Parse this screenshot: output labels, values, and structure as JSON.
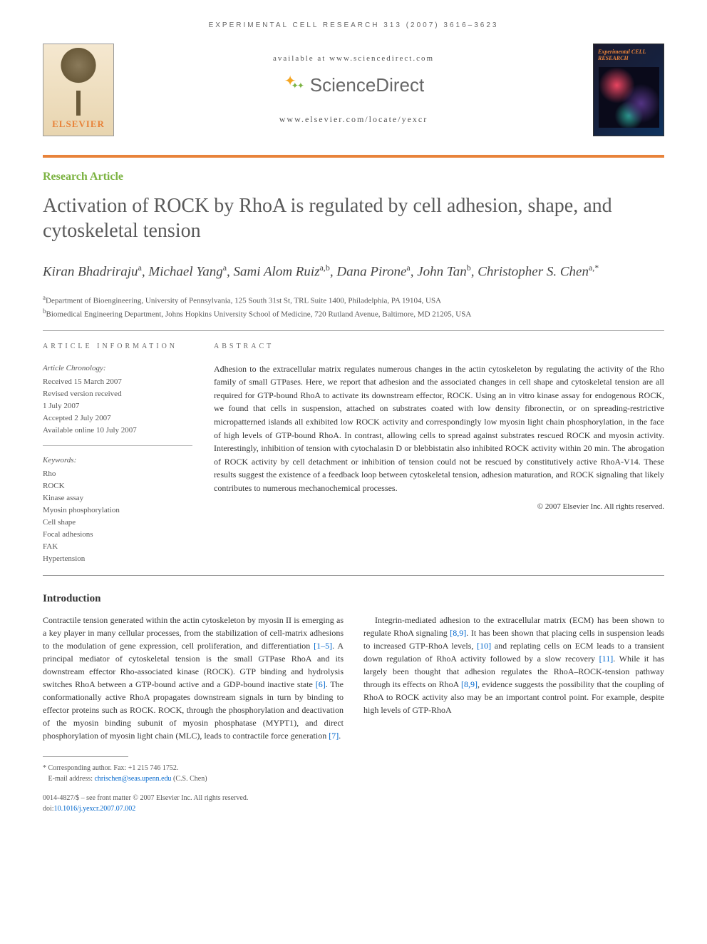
{
  "running_head": "EXPERIMENTAL CELL RESEARCH 313 (2007) 3616–3623",
  "header": {
    "elsevier": "ELSEVIER",
    "available_at": "available at www.sciencedirect.com",
    "sciencedirect": "ScienceDirect",
    "journal_url": "www.elsevier.com/locate/yexcr",
    "journal_cover_title": "Experimental CELL RESEARCH",
    "accent_color": "#e8833a"
  },
  "article_type": "Research Article",
  "title": "Activation of ROCK by RhoA is regulated by cell adhesion, shape, and cytoskeletal tension",
  "authors_line": "Kiran Bhadriraju",
  "authors": [
    {
      "name": "Kiran Bhadriraju",
      "aff": "a"
    },
    {
      "name": "Michael Yang",
      "aff": "a"
    },
    {
      "name": "Sami Alom Ruiz",
      "aff": "a,b"
    },
    {
      "name": "Dana Pirone",
      "aff": "a"
    },
    {
      "name": "John Tan",
      "aff": "b"
    },
    {
      "name": "Christopher S. Chen",
      "aff": "a,*"
    }
  ],
  "affiliations": {
    "a": "Department of Bioengineering, University of Pennsylvania, 125 South 31st St, TRL Suite 1400, Philadelphia, PA 19104, USA",
    "b": "Biomedical Engineering Department, Johns Hopkins University School of Medicine, 720 Rutland Avenue, Baltimore, MD 21205, USA"
  },
  "article_info": {
    "head": "ARTICLE INFORMATION",
    "chronology_label": "Article Chronology:",
    "received": "Received 15 March 2007",
    "revised1": "Revised version received",
    "revised2": "1 July 2007",
    "accepted": "Accepted 2 July 2007",
    "online": "Available online 10 July 2007",
    "keywords_label": "Keywords:",
    "keywords": [
      "Rho",
      "ROCK",
      "Kinase assay",
      "Myosin phosphorylation",
      "Cell shape",
      "Focal adhesions",
      "FAK",
      "Hypertension"
    ]
  },
  "abstract": {
    "head": "ABSTRACT",
    "text": "Adhesion to the extracellular matrix regulates numerous changes in the actin cytoskeleton by regulating the activity of the Rho family of small GTPases. Here, we report that adhesion and the associated changes in cell shape and cytoskeletal tension are all required for GTP-bound RhoA to activate its downstream effector, ROCK. Using an in vitro kinase assay for endogenous ROCK, we found that cells in suspension, attached on substrates coated with low density fibronectin, or on spreading-restrictive micropatterned islands all exhibited low ROCK activity and correspondingly low myosin light chain phosphorylation, in the face of high levels of GTP-bound RhoA. In contrast, allowing cells to spread against substrates rescued ROCK and myosin activity. Interestingly, inhibition of tension with cytochalasin D or blebbistatin also inhibited ROCK activity within 20 min. The abrogation of ROCK activity by cell detachment or inhibition of tension could not be rescued by constitutively active RhoA-V14. These results suggest the existence of a feedback loop between cytoskeletal tension, adhesion maturation, and ROCK signaling that likely contributes to numerous mechanochemical processes.",
    "copyright": "© 2007 Elsevier Inc. All rights reserved."
  },
  "intro": {
    "head": "Introduction",
    "p1a": "Contractile tension generated within the actin cytoskeleton by myosin II is emerging as a key player in many cellular processes, from the stabilization of cell-matrix adhesions to the modulation of gene expression, cell proliferation, and differentiation ",
    "ref1": "[1–5]",
    "p1b": ". A principal mediator of cytoskeletal tension is the small GTPase RhoA and its downstream effector Rho-associated kinase (ROCK). GTP binding and hydrolysis switches RhoA between a GTP-bound active and a GDP-bound inactive state ",
    "ref6": "[6]",
    "p1c": ". The conformationally active RhoA propagates downstream signals in turn by binding to effector proteins such as ROCK. ROCK, through the phosphorylation and deactivation of the myosin binding subunit of myosin phosphatase (MYPT1), and direct phosphorylation of myosin light chain (MLC), leads to contractile force generation ",
    "ref7": "[7]",
    "p1d": ".",
    "p2a": "Integrin-mediated adhesion to the extracellular matrix (ECM) has been shown to regulate RhoA signaling ",
    "ref89a": "[8,9]",
    "p2b": ". It has been shown that placing cells in suspension leads to increased GTP-RhoA levels, ",
    "ref10": "[10]",
    "p2c": " and replating cells on ECM leads to a transient down regulation of RhoA activity followed by a slow recovery ",
    "ref11": "[11]",
    "p2d": ". While it has largely been thought that adhesion regulates the RhoA–ROCK-tension pathway through its effects on RhoA ",
    "ref89b": "[8,9]",
    "p2e": ", evidence suggests the possibility that the coupling of RhoA to ROCK activity also may be an important control point. For example, despite high levels of GTP-RhoA"
  },
  "footnotes": {
    "corresponding": "* Corresponding author. Fax: +1 215 746 1752.",
    "email_label": "E-mail address: ",
    "email": "chrischen@seas.upenn.edu",
    "email_suffix": " (C.S. Chen)"
  },
  "doi": {
    "line1": "0014-4827/$ – see front matter © 2007 Elsevier Inc. All rights reserved.",
    "line2_prefix": "doi:",
    "doi": "10.1016/j.yexcr.2007.07.002"
  },
  "colors": {
    "accent_orange": "#e8833a",
    "link_blue": "#0066cc",
    "green": "#7cb342",
    "text": "#333333",
    "muted": "#666666"
  }
}
